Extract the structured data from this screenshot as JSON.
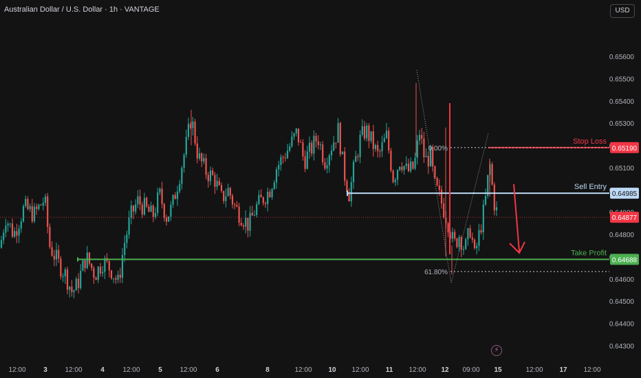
{
  "header": {
    "title": "Australian Dollar / U.S. Dollar · 1h · VANTAGE",
    "currency": "USD"
  },
  "colors": {
    "background": "#131313",
    "up": "#26a69a",
    "down": "#ef5350",
    "stop_loss": "#f23645",
    "sell_entry": "#bcd9f5",
    "take_profit": "#4caf50",
    "current_price": "#f23645"
  },
  "icons": {
    "flash": "lightning-icon"
  },
  "chart_data": {
    "type": "candlestick",
    "title": "Australian Dollar / U.S. Dollar · 1h · VANTAGE",
    "ylim": [
      0.6425,
      0.6563
    ],
    "y_ticks": [
      0.656,
      0.655,
      0.654,
      0.653,
      0.652,
      0.651,
      0.65,
      0.649,
      0.648,
      0.647,
      0.646,
      0.645,
      0.644,
      0.643
    ],
    "x_ticks": [
      "12:00",
      "3",
      "12:00",
      "4",
      "12:00",
      "5",
      "12:00",
      "6",
      "8",
      "12:00",
      "10",
      "12:00",
      "11",
      "12:00",
      "12",
      "09:00",
      "15",
      "12:00",
      "17",
      "12:00"
    ],
    "grid": false,
    "price_path": [
      [
        0,
        0.6474
      ],
      [
        8,
        0.6488
      ],
      [
        20,
        0.648
      ],
      [
        35,
        0.6492
      ],
      [
        50,
        0.6489
      ],
      [
        65,
        0.6496
      ],
      [
        72,
        0.6475
      ],
      [
        85,
        0.6467
      ],
      [
        95,
        0.6462
      ],
      [
        105,
        0.6454
      ],
      [
        112,
        0.6457
      ],
      [
        125,
        0.647
      ],
      [
        138,
        0.6462
      ],
      [
        150,
        0.6468
      ],
      [
        162,
        0.6464
      ],
      [
        172,
        0.6458
      ],
      [
        180,
        0.6475
      ],
      [
        190,
        0.6488
      ],
      [
        200,
        0.6495
      ],
      [
        210,
        0.6492
      ],
      [
        222,
        0.6488
      ],
      [
        232,
        0.6498
      ],
      [
        242,
        0.6488
      ],
      [
        250,
        0.6492
      ],
      [
        262,
        0.6508
      ],
      [
        272,
        0.6522
      ],
      [
        278,
        0.6533
      ],
      [
        288,
        0.6515
      ],
      [
        300,
        0.6508
      ],
      [
        312,
        0.6505
      ],
      [
        322,
        0.6496
      ],
      [
        332,
        0.65
      ],
      [
        342,
        0.6492
      ],
      [
        352,
        0.6488
      ],
      [
        362,
        0.6484
      ],
      [
        372,
        0.6492
      ],
      [
        382,
        0.6496
      ],
      [
        392,
        0.65
      ],
      [
        402,
        0.651
      ],
      [
        412,
        0.6515
      ],
      [
        422,
        0.652
      ],
      [
        432,
        0.6526
      ],
      [
        442,
        0.6513
      ],
      [
        452,
        0.6518
      ],
      [
        462,
        0.6524
      ],
      [
        472,
        0.6513
      ],
      [
        482,
        0.652
      ],
      [
        492,
        0.6527
      ],
      [
        500,
        0.6508
      ],
      [
        508,
        0.6498
      ],
      [
        516,
        0.6512
      ],
      [
        524,
        0.6523
      ],
      [
        532,
        0.6527
      ],
      [
        540,
        0.6522
      ],
      [
        550,
        0.6515
      ],
      [
        562,
        0.6524
      ],
      [
        572,
        0.6505
      ],
      [
        582,
        0.6514
      ],
      [
        592,
        0.6508
      ],
      [
        602,
        0.651
      ],
      [
        610,
        0.6526
      ],
      [
        618,
        0.6513
      ],
      [
        626,
        0.6515
      ],
      [
        632,
        0.6502
      ],
      [
        640,
        0.6496
      ],
      [
        652,
        0.6485
      ],
      [
        660,
        0.6475
      ],
      [
        668,
        0.648
      ],
      [
        676,
        0.6473
      ],
      [
        684,
        0.6483
      ],
      [
        690,
        0.647
      ],
      [
        698,
        0.6482
      ],
      [
        705,
        0.6493
      ],
      [
        712,
        0.6512
      ],
      [
        718,
        0.6495
      ],
      [
        724,
        0.6488
      ]
    ],
    "annotations": [
      {
        "label": "Stop Loss",
        "price": "0.65190",
        "color": "#f23645"
      },
      {
        "label": "Sell Entry",
        "price": "0.64985",
        "color": "#bcd9f5"
      },
      {
        "label": "Take Profit",
        "price": "0.64688",
        "color": "#4caf50"
      },
      {
        "label": "",
        "price": "0.64877",
        "color": "#f23645"
      }
    ],
    "fib_levels": [
      {
        "label": "0.00%",
        "price": 0.6519
      },
      {
        "label": "61.80%",
        "price": 0.64633
      }
    ]
  }
}
